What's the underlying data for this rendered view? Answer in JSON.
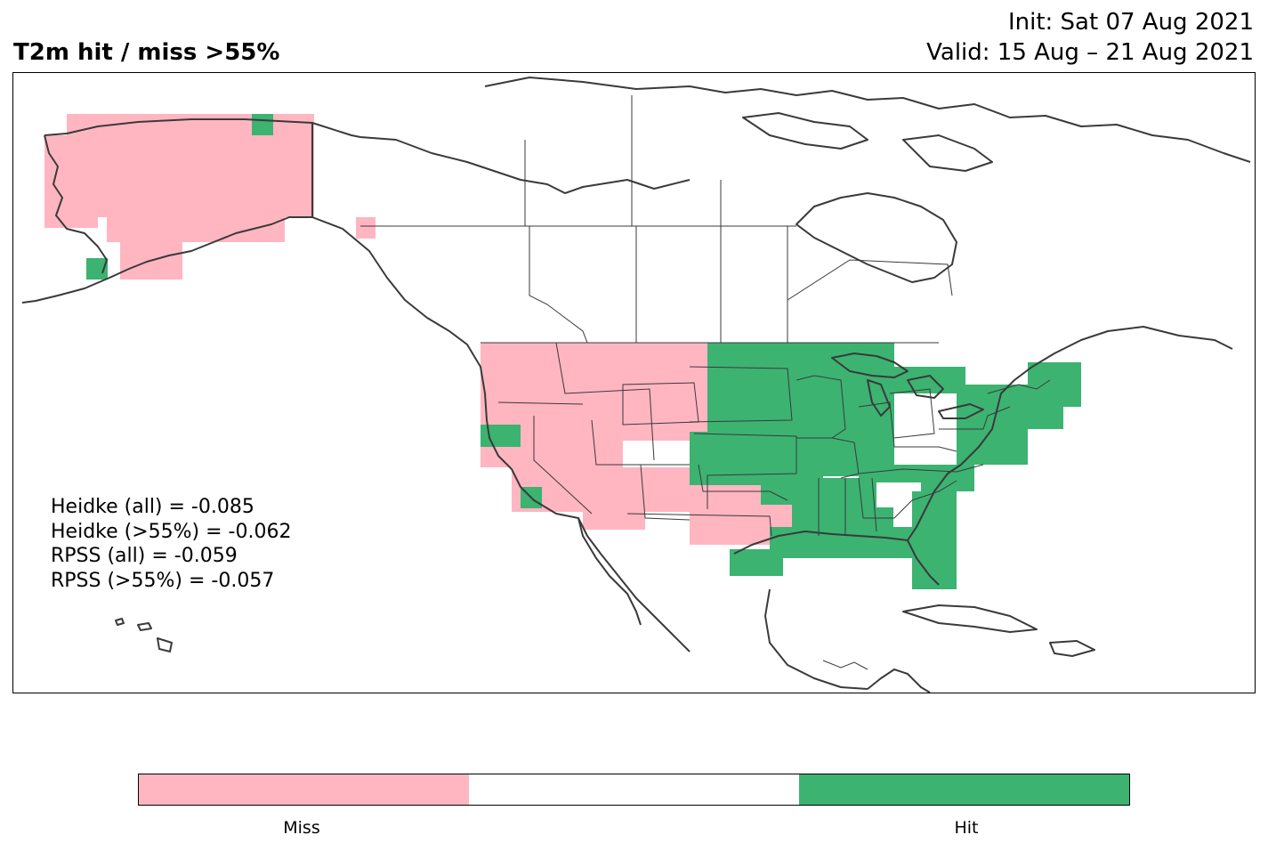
{
  "header": {
    "title": "T2m hit / miss  >55%",
    "init": "Init: Sat 07 Aug 2021",
    "valid": "Valid: 15 Aug – 21 Aug 2021"
  },
  "stats": [
    "Heidke (all) = -0.085",
    "Heidke (>55%) = -0.062",
    "RPSS (all) = -0.059",
    "RPSS (>55%) = -0.057"
  ],
  "colors": {
    "miss": "#ffb6c1",
    "neutral": "#ffffff",
    "hit": "#3cb371",
    "coast": "#3a3a3a"
  },
  "colorbar": {
    "labels": [
      "Miss",
      "Hit"
    ]
  },
  "map_regions": [
    {
      "name": "alaska",
      "result": "miss"
    },
    {
      "name": "western-us",
      "result": "miss"
    },
    {
      "name": "southern-plains",
      "result": "miss"
    },
    {
      "name": "central-eastern-us",
      "result": "hit"
    },
    {
      "name": "florida",
      "result": "hit"
    },
    {
      "name": "northeast-us",
      "result": "hit"
    }
  ]
}
